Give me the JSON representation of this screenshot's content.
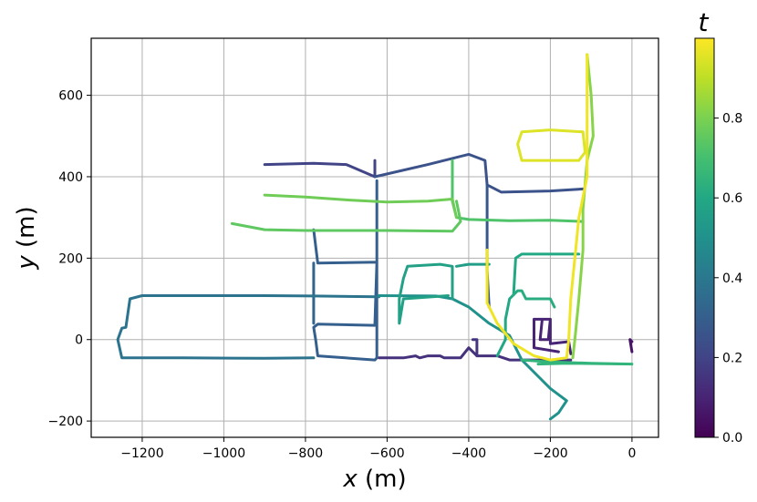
{
  "chart_data": {
    "type": "line",
    "title": "",
    "xlabel_var": "x",
    "xlabel_unit": " (m)",
    "ylabel_var": "y",
    "ylabel_unit": " (m)",
    "xlim": [
      -1325,
      65
    ],
    "ylim": [
      -240,
      740
    ],
    "xticks": [
      -1200,
      -1000,
      -800,
      -600,
      -400,
      -200,
      0
    ],
    "xtick_labels": [
      "−1200",
      "−1000",
      "−800",
      "−600",
      "−400",
      "−200",
      "0"
    ],
    "yticks": [
      -200,
      0,
      200,
      400,
      600
    ],
    "ytick_labels": [
      "−200",
      "0",
      "200",
      "400",
      "600"
    ],
    "grid": true,
    "colorbar": {
      "label": "t",
      "range": [
        0,
        1
      ],
      "ticks": [
        0.0,
        0.2,
        0.4,
        0.6,
        0.8
      ],
      "tick_labels": [
        "0.0",
        "0.2",
        "0.4",
        "0.6",
        "0.8"
      ],
      "colormap": "viridis"
    },
    "series": [
      {
        "t": 0.05,
        "points": [
          [
            0,
            -5
          ],
          [
            -5,
            0
          ],
          [
            0,
            -30
          ]
        ]
      },
      {
        "t": 0.1,
        "points": [
          [
            -150,
            -35
          ],
          [
            -155,
            -5
          ],
          [
            -200,
            -10
          ],
          [
            -200,
            50
          ],
          [
            -220,
            50
          ],
          [
            -225,
            0
          ],
          [
            -205,
            0
          ],
          [
            -200,
            50
          ],
          [
            -225,
            50
          ],
          [
            -240,
            50
          ],
          [
            -240,
            -20
          ],
          [
            -180,
            -30
          ]
        ]
      },
      {
        "t": 0.14,
        "points": [
          [
            -150,
            -50
          ],
          [
            -300,
            -50
          ],
          [
            -330,
            -40
          ],
          [
            -380,
            -40
          ],
          [
            -400,
            -20
          ],
          [
            -420,
            -45
          ],
          [
            -460,
            -45
          ],
          [
            -470,
            -40
          ],
          [
            -500,
            -40
          ],
          [
            -520,
            -45
          ],
          [
            -530,
            -40
          ],
          [
            -560,
            -45
          ],
          [
            -620,
            -45
          ]
        ]
      },
      {
        "t": 0.15,
        "points": [
          [
            -380,
            -40
          ],
          [
            -380,
            0
          ],
          [
            -390,
            0
          ]
        ]
      },
      {
        "t": 0.2,
        "points": [
          [
            -900,
            430
          ],
          [
            -780,
            433
          ],
          [
            -700,
            430
          ],
          [
            -630,
            400
          ],
          [
            -630,
            440
          ]
        ]
      },
      {
        "t": 0.25,
        "points": [
          [
            -630,
            400
          ],
          [
            -500,
            430
          ],
          [
            -400,
            455
          ],
          [
            -360,
            440
          ],
          [
            -355,
            380
          ],
          [
            -320,
            362
          ],
          [
            -200,
            365
          ],
          [
            -120,
            370
          ]
        ]
      },
      {
        "t": 0.27,
        "points": [
          [
            -355,
            380
          ],
          [
            -355,
            170
          ],
          [
            -350,
            80
          ]
        ]
      },
      {
        "t": 0.3,
        "points": [
          [
            -625,
            390
          ],
          [
            -625,
            -45
          ],
          [
            -630,
            -50
          ],
          [
            -770,
            -40
          ],
          [
            -775,
            0
          ],
          [
            -780,
            30
          ],
          [
            -770,
            38
          ],
          [
            -630,
            35
          ],
          [
            -625,
            190
          ],
          [
            -770,
            188
          ],
          [
            -780,
            270
          ]
        ]
      },
      {
        "t": 0.32,
        "points": [
          [
            -780,
            188
          ],
          [
            -780,
            40
          ]
        ]
      },
      {
        "t": 0.38,
        "points": [
          [
            -620,
            105
          ],
          [
            -780,
            107
          ],
          [
            -900,
            108
          ],
          [
            -1040,
            108
          ],
          [
            -1200,
            108
          ],
          [
            -1230,
            100
          ],
          [
            -1240,
            30
          ],
          [
            -1250,
            28
          ],
          [
            -1260,
            0
          ],
          [
            -1250,
            -45
          ],
          [
            -1100,
            -45
          ],
          [
            -900,
            -46
          ],
          [
            -780,
            -45
          ]
        ]
      },
      {
        "t": 0.5,
        "points": [
          [
            -620,
            108
          ],
          [
            -480,
            107
          ],
          [
            -440,
            100
          ],
          [
            -400,
            80
          ],
          [
            -350,
            40
          ],
          [
            -300,
            10
          ],
          [
            -270,
            -50
          ],
          [
            -230,
            -90
          ],
          [
            -200,
            -120
          ],
          [
            -160,
            -150
          ],
          [
            -180,
            -180
          ],
          [
            -200,
            -195
          ]
        ]
      },
      {
        "t": 0.55,
        "points": [
          [
            -430,
            180
          ],
          [
            -400,
            185
          ],
          [
            -350,
            185
          ]
        ]
      },
      {
        "t": 0.57,
        "points": [
          [
            -440,
            100
          ],
          [
            -440,
            180
          ],
          [
            -470,
            185
          ],
          [
            -550,
            180
          ],
          [
            -560,
            150
          ],
          [
            -570,
            100
          ],
          [
            -570,
            40
          ],
          [
            -560,
            100
          ],
          [
            -450,
            108
          ]
        ]
      },
      {
        "t": 0.6,
        "points": [
          [
            -330,
            -40
          ],
          [
            -320,
            -20
          ],
          [
            -310,
            0
          ],
          [
            -310,
            50
          ],
          [
            -300,
            100
          ],
          [
            -290,
            110
          ],
          [
            -285,
            200
          ],
          [
            -270,
            210
          ],
          [
            -130,
            210
          ]
        ]
      },
      {
        "t": 0.62,
        "points": [
          [
            -290,
            110
          ],
          [
            -280,
            120
          ],
          [
            -270,
            120
          ],
          [
            -260,
            100
          ],
          [
            -200,
            100
          ],
          [
            -190,
            80
          ]
        ]
      },
      {
        "t": 0.65,
        "points": [
          [
            -270,
            -50
          ],
          [
            -200,
            -55
          ],
          [
            -100,
            -58
          ],
          [
            0,
            -60
          ],
          [
            -160,
            -58
          ],
          [
            -230,
            -60
          ]
        ]
      },
      {
        "t": 0.72,
        "points": [
          [
            -440,
            440
          ],
          [
            -440,
            340
          ],
          [
            -430,
            300
          ],
          [
            -400,
            295
          ],
          [
            -300,
            292
          ],
          [
            -200,
            293
          ],
          [
            -120,
            290
          ]
        ]
      },
      {
        "t": 0.75,
        "points": [
          [
            -980,
            285
          ],
          [
            -900,
            270
          ],
          [
            -800,
            268
          ],
          [
            -600,
            268
          ],
          [
            -440,
            266
          ],
          [
            -420,
            290
          ],
          [
            -430,
            340
          ]
        ]
      },
      {
        "t": 0.78,
        "points": [
          [
            -900,
            355
          ],
          [
            -800,
            350
          ],
          [
            -700,
            343
          ],
          [
            -600,
            338
          ],
          [
            -500,
            340
          ],
          [
            -440,
            345
          ],
          [
            -430,
            300
          ]
        ]
      },
      {
        "t": 0.82,
        "points": [
          [
            -110,
            700
          ],
          [
            -100,
            600
          ],
          [
            -95,
            500
          ],
          [
            -110,
            440
          ],
          [
            -120,
            320
          ],
          [
            -120,
            220
          ],
          [
            -130,
            100
          ],
          [
            -140,
            0
          ],
          [
            -145,
            -45
          ]
        ]
      },
      {
        "t": 0.95,
        "points": [
          [
            -270,
            440
          ],
          [
            -200,
            440
          ],
          [
            -130,
            440
          ],
          [
            -115,
            460
          ],
          [
            -120,
            510
          ],
          [
            -200,
            515
          ],
          [
            -270,
            510
          ],
          [
            -280,
            480
          ],
          [
            -270,
            440
          ]
        ]
      },
      {
        "t": 0.98,
        "points": [
          [
            -110,
            700
          ],
          [
            -110,
            600
          ],
          [
            -110,
            500
          ],
          [
            -110,
            400
          ],
          [
            -130,
            300
          ],
          [
            -140,
            200
          ],
          [
            -150,
            100
          ],
          [
            -155,
            0
          ],
          [
            -160,
            -45
          ],
          [
            -200,
            -50
          ],
          [
            -240,
            -40
          ],
          [
            -290,
            -10
          ],
          [
            -330,
            40
          ],
          [
            -355,
            90
          ],
          [
            -355,
            220
          ]
        ]
      }
    ]
  }
}
